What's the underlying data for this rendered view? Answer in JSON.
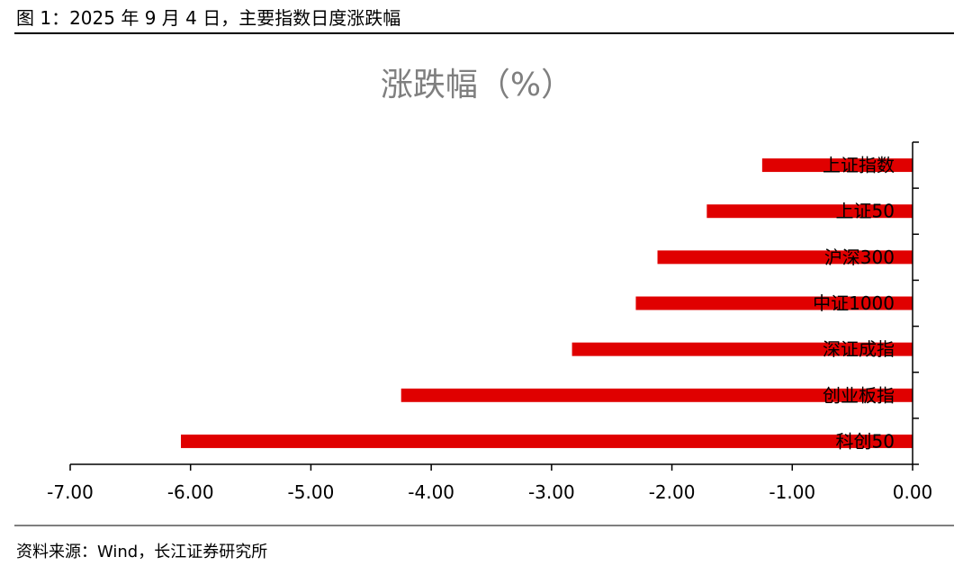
{
  "figure": {
    "title": "图 1：2025 年 9 月 4 日，主要指数日度涨跌幅",
    "source": "资料来源：Wind，长江证券研究所"
  },
  "colors": {
    "bar": "#e00000",
    "axis": "#000000",
    "chart_title": "#7f7f7f"
  },
  "chart_data": {
    "type": "bar",
    "orientation": "horizontal",
    "title": "涨跌幅（%）",
    "categories": [
      "上证指数",
      "上证50",
      "沪深300",
      "中证1000",
      "深证成指",
      "创业板指",
      "科创50"
    ],
    "values": [
      -1.25,
      -1.71,
      -2.12,
      -2.3,
      -2.83,
      -4.25,
      -6.08
    ],
    "xlim": [
      -7,
      0
    ],
    "xticks": [
      "-7.00",
      "-6.00",
      "-5.00",
      "-4.00",
      "-3.00",
      "-2.00",
      "-1.00",
      "0.00"
    ],
    "xlabel": "",
    "ylabel": "",
    "grid": false,
    "legend": "none"
  }
}
